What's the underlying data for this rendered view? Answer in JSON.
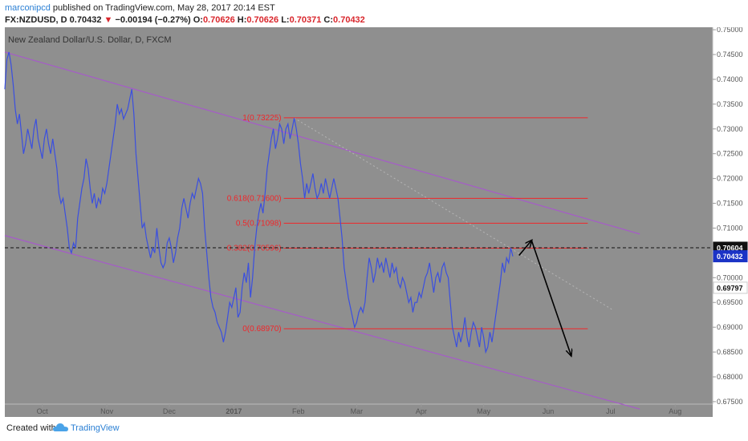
{
  "header": {
    "author": "marconipcd",
    "published": "published on TradingView.com, May 28, 2017 20:14 EST",
    "symbol": "FX:NZDUSD, D",
    "price": "0.70432",
    "change": "−0.00194 (−0.27%)",
    "open_label": "O:",
    "open": "0.70626",
    "high_label": "H:",
    "high": "0.70626",
    "low_label": "L:",
    "low": "0.70371",
    "close_label": "C:",
    "close": "0.70432"
  },
  "footer": {
    "created_with": "Created with",
    "brand": "TradingView"
  },
  "chart_data": {
    "type": "line",
    "title": "New Zealand Dollar/U.S. Dollar, D, FXCM",
    "ylim": [
      0.6745,
      0.7505
    ],
    "y_ticks": [
      "0.75000",
      "0.74500",
      "0.74000",
      "0.73500",
      "0.73000",
      "0.72500",
      "0.72000",
      "0.71500",
      "0.71000",
      "0.70500",
      "0.70000",
      "0.69500",
      "0.69000",
      "0.68500",
      "0.68000",
      "0.67500"
    ],
    "x_ticks": [
      {
        "label": "Oct",
        "day": 18
      },
      {
        "label": "Nov",
        "day": 49
      },
      {
        "label": "Dec",
        "day": 79
      },
      {
        "label": "2017",
        "day": 110
      },
      {
        "label": "Feb",
        "day": 141
      },
      {
        "label": "Mar",
        "day": 169
      },
      {
        "label": "Apr",
        "day": 200
      },
      {
        "label": "May",
        "day": 230
      },
      {
        "label": "Jun",
        "day": 261
      },
      {
        "label": "Jul",
        "day": 291
      },
      {
        "label": "Aug",
        "day": 322
      }
    ],
    "x_domain": [
      0,
      340
    ],
    "series": [
      {
        "values": [
          [
            0,
            0.738
          ],
          [
            1,
            0.744
          ],
          [
            2,
            0.7455
          ],
          [
            3,
            0.743
          ],
          [
            4,
            0.739
          ],
          [
            5,
            0.734
          ],
          [
            6,
            0.731
          ],
          [
            7,
            0.733
          ],
          [
            8,
            0.729
          ],
          [
            9,
            0.725
          ],
          [
            10,
            0.727
          ],
          [
            11,
            0.73
          ],
          [
            12,
            0.728
          ],
          [
            13,
            0.726
          ],
          [
            14,
            0.73
          ],
          [
            15,
            0.732
          ],
          [
            16,
            0.728
          ],
          [
            17,
            0.726
          ],
          [
            18,
            0.724
          ],
          [
            19,
            0.728
          ],
          [
            20,
            0.73
          ],
          [
            21,
            0.727
          ],
          [
            22,
            0.725
          ],
          [
            23,
            0.728
          ],
          [
            24,
            0.725
          ],
          [
            25,
            0.722
          ],
          [
            26,
            0.717
          ],
          [
            27,
            0.715
          ],
          [
            28,
            0.716
          ],
          [
            29,
            0.713
          ],
          [
            30,
            0.71
          ],
          [
            31,
            0.706
          ],
          [
            32,
            0.705
          ],
          [
            33,
            0.707
          ],
          [
            34,
            0.706
          ],
          [
            35,
            0.712
          ],
          [
            36,
            0.715
          ],
          [
            37,
            0.718
          ],
          [
            38,
            0.72
          ],
          [
            39,
            0.724
          ],
          [
            40,
            0.722
          ],
          [
            41,
            0.718
          ],
          [
            42,
            0.715
          ],
          [
            43,
            0.717
          ],
          [
            44,
            0.714
          ],
          [
            45,
            0.716
          ],
          [
            46,
            0.715
          ],
          [
            47,
            0.718
          ],
          [
            48,
            0.717
          ],
          [
            49,
            0.719
          ],
          [
            50,
            0.722
          ],
          [
            51,
            0.725
          ],
          [
            52,
            0.728
          ],
          [
            53,
            0.731
          ],
          [
            54,
            0.735
          ],
          [
            55,
            0.733
          ],
          [
            56,
            0.734
          ],
          [
            57,
            0.732
          ],
          [
            58,
            0.733
          ],
          [
            59,
            0.734
          ],
          [
            60,
            0.736
          ],
          [
            61,
            0.738
          ],
          [
            62,
            0.733
          ],
          [
            63,
            0.725
          ],
          [
            64,
            0.72
          ],
          [
            65,
            0.715
          ],
          [
            66,
            0.71
          ],
          [
            67,
            0.711
          ],
          [
            68,
            0.708
          ],
          [
            69,
            0.706
          ],
          [
            70,
            0.704
          ],
          [
            71,
            0.706
          ],
          [
            72,
            0.705
          ],
          [
            73,
            0.71
          ],
          [
            74,
            0.706
          ],
          [
            75,
            0.703
          ],
          [
            76,
            0.702
          ],
          [
            77,
            0.703
          ],
          [
            78,
            0.707
          ],
          [
            79,
            0.708
          ],
          [
            80,
            0.706
          ],
          [
            81,
            0.703
          ],
          [
            82,
            0.705
          ],
          [
            83,
            0.708
          ],
          [
            84,
            0.71
          ],
          [
            85,
            0.714
          ],
          [
            86,
            0.716
          ],
          [
            87,
            0.714
          ],
          [
            88,
            0.712
          ],
          [
            89,
            0.715
          ],
          [
            90,
            0.717
          ],
          [
            91,
            0.716
          ],
          [
            92,
            0.718
          ],
          [
            93,
            0.72
          ],
          [
            94,
            0.719
          ],
          [
            95,
            0.717
          ],
          [
            96,
            0.71
          ],
          [
            97,
            0.705
          ],
          [
            98,
            0.7
          ],
          [
            99,
            0.696
          ],
          [
            100,
            0.694
          ],
          [
            101,
            0.693
          ],
          [
            102,
            0.691
          ],
          [
            103,
            0.69
          ],
          [
            104,
            0.689
          ],
          [
            105,
            0.687
          ],
          [
            106,
            0.689
          ],
          [
            107,
            0.692
          ],
          [
            108,
            0.695
          ],
          [
            109,
            0.694
          ],
          [
            110,
            0.696
          ],
          [
            111,
            0.698
          ],
          [
            112,
            0.692
          ],
          [
            113,
            0.693
          ],
          [
            114,
            0.698
          ],
          [
            115,
            0.701
          ],
          [
            116,
            0.699
          ],
          [
            117,
            0.703
          ],
          [
            118,
            0.696
          ],
          [
            119,
            0.7
          ],
          [
            120,
            0.706
          ],
          [
            121,
            0.71
          ],
          [
            122,
            0.713
          ],
          [
            123,
            0.715
          ],
          [
            124,
            0.713
          ],
          [
            125,
            0.717
          ],
          [
            126,
            0.722
          ],
          [
            127,
            0.725
          ],
          [
            128,
            0.728
          ],
          [
            129,
            0.73
          ],
          [
            130,
            0.726
          ],
          [
            131,
            0.728
          ],
          [
            132,
            0.731
          ],
          [
            133,
            0.73
          ],
          [
            134,
            0.727
          ],
          [
            135,
            0.73
          ],
          [
            136,
            0.731
          ],
          [
            137,
            0.728
          ],
          [
            138,
            0.73
          ],
          [
            139,
            0.7322
          ],
          [
            140,
            0.73
          ],
          [
            141,
            0.727
          ],
          [
            142,
            0.723
          ],
          [
            143,
            0.72
          ],
          [
            144,
            0.716
          ],
          [
            145,
            0.719
          ],
          [
            146,
            0.717
          ],
          [
            147,
            0.719
          ],
          [
            148,
            0.721
          ],
          [
            149,
            0.718
          ],
          [
            150,
            0.716
          ],
          [
            151,
            0.717
          ],
          [
            152,
            0.719
          ],
          [
            153,
            0.717
          ],
          [
            154,
            0.72
          ],
          [
            155,
            0.718
          ],
          [
            156,
            0.716
          ],
          [
            157,
            0.718
          ],
          [
            158,
            0.72
          ],
          [
            159,
            0.718
          ],
          [
            160,
            0.716
          ],
          [
            161,
            0.712
          ],
          [
            162,
            0.708
          ],
          [
            163,
            0.702
          ],
          [
            164,
            0.699
          ],
          [
            165,
            0.696
          ],
          [
            166,
            0.694
          ],
          [
            167,
            0.692
          ],
          [
            168,
            0.69
          ],
          [
            169,
            0.691
          ],
          [
            170,
            0.693
          ],
          [
            171,
            0.694
          ],
          [
            172,
            0.693
          ],
          [
            173,
            0.695
          ],
          [
            174,
            0.7
          ],
          [
            175,
            0.704
          ],
          [
            176,
            0.702
          ],
          [
            177,
            0.699
          ],
          [
            178,
            0.701
          ],
          [
            179,
            0.704
          ],
          [
            180,
            0.702
          ],
          [
            181,
            0.703
          ],
          [
            182,
            0.701
          ],
          [
            183,
            0.704
          ],
          [
            184,
            0.702
          ],
          [
            185,
            0.7
          ],
          [
            186,
            0.703
          ],
          [
            187,
            0.701
          ],
          [
            188,
            0.702
          ],
          [
            189,
            0.699
          ],
          [
            190,
            0.698
          ],
          [
            191,
            0.7
          ],
          [
            192,
            0.699
          ],
          [
            193,
            0.697
          ],
          [
            194,
            0.695
          ],
          [
            195,
            0.696
          ],
          [
            196,
            0.693
          ],
          [
            197,
            0.695
          ],
          [
            198,
            0.695
          ],
          [
            199,
            0.697
          ],
          [
            200,
            0.696
          ],
          [
            201,
            0.698
          ],
          [
            202,
            0.7
          ],
          [
            203,
            0.701
          ],
          [
            204,
            0.703
          ],
          [
            205,
            0.7
          ],
          [
            206,
            0.697
          ],
          [
            207,
            0.7
          ],
          [
            208,
            0.701
          ],
          [
            209,
            0.699
          ],
          [
            210,
            0.702
          ],
          [
            211,
            0.703
          ],
          [
            212,
            0.701
          ],
          [
            213,
            0.7
          ],
          [
            214,
            0.695
          ],
          [
            215,
            0.69
          ],
          [
            216,
            0.688
          ],
          [
            217,
            0.686
          ],
          [
            218,
            0.689
          ],
          [
            219,
            0.687
          ],
          [
            220,
            0.689
          ],
          [
            221,
            0.692
          ],
          [
            222,
            0.688
          ],
          [
            223,
            0.686
          ],
          [
            224,
            0.689
          ],
          [
            225,
            0.691
          ],
          [
            226,
            0.69
          ],
          [
            227,
            0.688
          ],
          [
            228,
            0.686
          ],
          [
            229,
            0.69
          ],
          [
            230,
            0.688
          ],
          [
            231,
            0.685
          ],
          [
            232,
            0.686
          ],
          [
            233,
            0.689
          ],
          [
            234,
            0.687
          ],
          [
            235,
            0.69
          ],
          [
            236,
            0.693
          ],
          [
            237,
            0.696
          ],
          [
            238,
            0.699
          ],
          [
            239,
            0.703
          ],
          [
            240,
            0.701
          ],
          [
            241,
            0.704
          ],
          [
            242,
            0.703
          ],
          [
            243,
            0.706
          ],
          [
            244,
            0.7043
          ]
        ]
      }
    ],
    "fibonacci": [
      {
        "label": "1(0.73225)",
        "value": 0.73225
      },
      {
        "label": "0.618(0.71600)",
        "value": 0.716
      },
      {
        "label": "0.5(0.71098)",
        "value": 0.71098
      },
      {
        "label": "0.382(0.70596)",
        "value": 0.70596
      },
      {
        "label": "0(0.68970)",
        "value": 0.6897
      }
    ],
    "fib_range": [
      134,
      280
    ],
    "channel": [
      {
        "from": [
          0,
          0.7455
        ],
        "to": [
          305,
          0.7088
        ]
      },
      {
        "from": [
          0,
          0.7085
        ],
        "to": [
          305,
          0.6735
        ]
      }
    ],
    "projection": [
      {
        "from": [
          247,
          0.7045
        ],
        "to": [
          253,
          0.7075
        ]
      },
      {
        "from": [
          253,
          0.7075
        ],
        "to": [
          272,
          0.6843
        ]
      }
    ],
    "price_markers": [
      {
        "value": 0.69797,
        "label": "0.69797",
        "bg": "#ffffff",
        "fg": "#111111"
      },
      {
        "value": 0.70604,
        "label": "0.70604",
        "bg": "#111111",
        "fg": "#ffffff"
      },
      {
        "value": 0.70432,
        "label": "0.70432",
        "bg": "#1b33c6",
        "fg": "#ffffff"
      }
    ],
    "colors": {
      "plot_bg": "#8f8f8f",
      "price_line": "#3a4fe0",
      "fib": "#f0262a",
      "channel": "#a65bc9",
      "projection": "#000000"
    }
  }
}
